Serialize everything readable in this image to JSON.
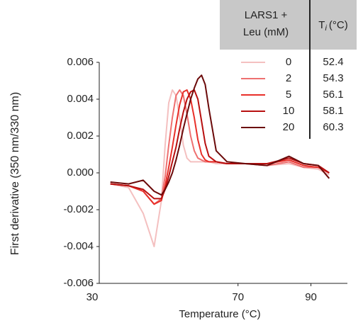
{
  "chart_data": {
    "type": "line",
    "x_label": "Temperature (°C)",
    "y_label": "First derivative (350 nm/330 nm)",
    "legend_title": [
      "LARS1 +",
      "Leu (mM)"
    ],
    "value_header": {
      "base": "T",
      "sub": "i",
      "unit": "(°C)"
    },
    "legend_values": [
      52.4,
      54.3,
      56.1,
      58.1,
      60.3
    ],
    "x": [
      35,
      40,
      44,
      47,
      49,
      50,
      51,
      52,
      53,
      54,
      55,
      56,
      57,
      58,
      59,
      60,
      61,
      62,
      64,
      67,
      72,
      78,
      84,
      88,
      92,
      95
    ],
    "series": [
      {
        "name": "0",
        "color": "#f4c0c0",
        "values": [
          -0.0006,
          -0.0008,
          -0.0022,
          -0.004,
          -0.0015,
          0.0015,
          0.0038,
          0.0045,
          0.0042,
          0.003,
          0.0015,
          0.0008,
          0.0006,
          0.0006,
          0.0006,
          0.0006,
          0.0006,
          0.0006,
          0.0005,
          0.0005,
          0.0005,
          0.0004,
          0.0005,
          0.0003,
          0.0002,
          -0.0001
        ]
      },
      {
        "name": "2",
        "color": "#ee7070",
        "values": [
          -0.0006,
          -0.0007,
          -0.001,
          -0.0017,
          -0.0014,
          -0.0002,
          0.0015,
          0.003,
          0.0042,
          0.0045,
          0.0042,
          0.0032,
          0.002,
          0.0012,
          0.0008,
          0.0007,
          0.0006,
          0.0006,
          0.0006,
          0.0005,
          0.0005,
          0.0004,
          0.0006,
          0.0003,
          0.0003,
          0
        ]
      },
      {
        "name": "5",
        "color": "#e8302a",
        "values": [
          -0.0006,
          -0.0007,
          -0.001,
          -0.0017,
          -0.0015,
          -0.0007,
          0.0003,
          0.0014,
          0.0026,
          0.0037,
          0.0044,
          0.0045,
          0.004,
          0.003,
          0.0018,
          0.001,
          0.0007,
          0.0006,
          0.0006,
          0.0005,
          0.0005,
          0.0005,
          0.0007,
          0.0004,
          0.0003,
          0
        ]
      },
      {
        "name": "10",
        "color": "#b81010",
        "values": [
          -0.0006,
          -0.0007,
          -0.0009,
          -0.0014,
          -0.0014,
          -0.0009,
          -0.0002,
          0.0006,
          0.0014,
          0.0024,
          0.0033,
          0.004,
          0.0044,
          0.0045,
          0.004,
          0.0028,
          0.0016,
          0.0009,
          0.0006,
          0.0005,
          0.0005,
          0.0005,
          0.0008,
          0.0005,
          0.0004,
          0
        ]
      },
      {
        "name": "20",
        "color": "#6b0a0a",
        "values": [
          -0.0005,
          -0.0006,
          -0.0004,
          -0.001,
          -0.0012,
          -0.0009,
          -0.0005,
          0,
          0.0007,
          0.0015,
          0.0024,
          0.0032,
          0.004,
          0.0046,
          0.0051,
          0.0053,
          0.0048,
          0.0035,
          0.0012,
          0.0006,
          0.0005,
          0.0004,
          0.0009,
          0.0005,
          0.0004,
          -0.0003
        ]
      }
    ],
    "xlim": [
      30,
      100
    ],
    "xticks": [
      30,
      70,
      90
    ],
    "ylim": [
      -0.006,
      0.006
    ],
    "yticks": [
      -0.006,
      -0.004,
      -0.002,
      {
        "value": 0,
        "label": "0.000"
      },
      0.002,
      0.004,
      0.006
    ]
  }
}
